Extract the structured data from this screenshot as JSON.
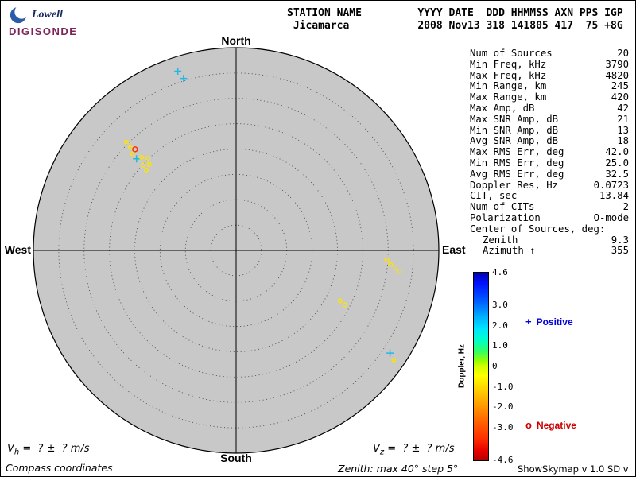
{
  "logo": {
    "name": "Lowell",
    "brand": "DIGISONDE"
  },
  "header": {
    "line1": "STATION NAME         YYYY DATE  DDD HHMMSS AXN PPS IGP",
    "line2": " Jicamarca           2008 Nov13 318 141805 417  75 +8G",
    "columns": [
      "STATION NAME",
      "YYYY DATE",
      "DDD",
      "HHMMSS",
      "AXN",
      "PPS",
      "IGP"
    ],
    "values": [
      "Jicamarca",
      "2008 Nov13",
      "318",
      "141805",
      "417",
      "75",
      "+8G"
    ]
  },
  "compass": {
    "north": "North",
    "south": "South",
    "west": "West",
    "east": "East"
  },
  "stats": [
    {
      "label": "Num of Sources",
      "value": "20"
    },
    {
      "label": "Min Freq, kHz",
      "value": "3790"
    },
    {
      "label": "Max Freq, kHz",
      "value": "4820"
    },
    {
      "label": "Min Range, km",
      "value": "245"
    },
    {
      "label": "Max Range, km",
      "value": "420"
    },
    {
      "label": "Max Amp, dB",
      "value": "42"
    },
    {
      "label": "Max SNR Amp, dB",
      "value": "21"
    },
    {
      "label": "Min SNR Amp, dB",
      "value": "13"
    },
    {
      "label": "Avg SNR Amp, dB",
      "value": "18"
    },
    {
      "label": "Max RMS Err, deg",
      "value": "42.0"
    },
    {
      "label": "Min RMS Err, deg",
      "value": "25.0"
    },
    {
      "label": "Avg RMS Err, deg",
      "value": "32.5"
    },
    {
      "label": "Doppler Res, Hz",
      "value": "0.0723"
    },
    {
      "label": "CIT, sec",
      "value": "13.84"
    },
    {
      "label": "Num of CITs",
      "value": "2"
    },
    {
      "label": "Polarization",
      "value": "O-mode"
    },
    {
      "label": "Center of Sources, deg:",
      "value": ""
    },
    {
      "label": "Zenith",
      "value": "9.3",
      "indent": true
    },
    {
      "label": "Azimuth ↑",
      "value": "355",
      "indent": true
    }
  ],
  "colorbar": {
    "title": "Doppler, Hz",
    "min": -4.6,
    "max": 4.6,
    "ticks": [
      {
        "value": 4.6,
        "label": "4.6"
      },
      {
        "value": 3.0,
        "label": "3.0"
      },
      {
        "value": 2.0,
        "label": "2.0"
      },
      {
        "value": 1.0,
        "label": "1.0"
      },
      {
        "value": 0,
        "label": "0"
      },
      {
        "value": -1.0,
        "label": "-1.0"
      },
      {
        "value": -2.0,
        "label": "-2.0"
      },
      {
        "value": -3.0,
        "label": "-3.0"
      },
      {
        "value": -4.6,
        "label": "-4.6"
      }
    ],
    "gradient": [
      "#0000b4 0%",
      "#0014ff 6%",
      "#0064ff 16%",
      "#00b4ff 24%",
      "#00e6ff 30%",
      "#00ffc8 36%",
      "#32ff64 42%",
      "#96ff00 47%",
      "#d2ff00 50%",
      "#ffff00 55%",
      "#ffd200 62%",
      "#ffa000 70%",
      "#ff6400 79%",
      "#ff3200 88%",
      "#e60000 95%",
      "#b40000 100%"
    ]
  },
  "legend": {
    "positive": {
      "symbol": "+",
      "label": "Positive",
      "color": "#0000dd"
    },
    "negative": {
      "symbol": "o",
      "label": "Negative",
      "color": "#cc0000"
    }
  },
  "velocity": {
    "vh": {
      "sym": "V",
      "sub": "h",
      "rest": " =  ? ±  ? m/s"
    },
    "vz": {
      "sym": "V",
      "sub": "z",
      "rest": " =  ? ±  ? m/s"
    }
  },
  "footer": {
    "left": "Compass coordinates",
    "center": "Zenith: max 40°  step 5°",
    "right": "ShowSkymap v 1.0  SD v 4.2"
  },
  "chart_data": {
    "type": "scatter",
    "projection": "polar-skymap",
    "station": "Jicamarca",
    "zenith_max_deg": 40,
    "zenith_step_deg": 5,
    "doppler_range_hz": [
      -4.6,
      4.6
    ],
    "center_of_sources": {
      "zenith_deg": 9.3,
      "azimuth_deg": 355
    },
    "points": [
      {
        "zen": 37.2,
        "az": 342.0,
        "sym": "+",
        "color": "#22b8e6",
        "doppler": 2.0
      },
      {
        "zen": 35.5,
        "az": 343.0,
        "sym": "+",
        "color": "#22b8e6",
        "doppler": 2.0
      },
      {
        "zen": 30.4,
        "az": 314.6,
        "sym": "o",
        "color": "#ffe400",
        "doppler": -1.0
      },
      {
        "zen": 29.1,
        "az": 314.1,
        "sym": "o",
        "color": "#ffe400",
        "doppler": -1.0
      },
      {
        "zen": 28.2,
        "az": 315.0,
        "sym": "o",
        "color": "#ff2d00",
        "doppler": -3.8,
        "r": 3
      },
      {
        "zen": 26.7,
        "az": 312.6,
        "sym": "+",
        "color": "#22b8e6",
        "doppler": 1.5
      },
      {
        "zen": 27.9,
        "az": 313.0,
        "sym": "o",
        "color": "#ffe400",
        "doppler": -1.0
      },
      {
        "zen": 26.2,
        "az": 314.5,
        "sym": "o",
        "color": "#ffe400",
        "doppler": -1.0
      },
      {
        "zen": 25.2,
        "az": 316.2,
        "sym": "o",
        "color": "#ffe400",
        "doppler": -1.0
      },
      {
        "zen": 24.9,
        "az": 312.5,
        "sym": "o",
        "color": "#ffe400",
        "doppler": -1.0
      },
      {
        "zen": 23.8,
        "az": 311.8,
        "sym": "o",
        "color": "#ffe400",
        "doppler": -1.0
      },
      {
        "zen": 24.1,
        "az": 314.7,
        "sym": "o",
        "color": "#ffe400",
        "doppler": -1.0
      },
      {
        "zen": 29.8,
        "az": 93.6,
        "sym": "o",
        "color": "#ffe400",
        "doppler": -1.0
      },
      {
        "zen": 30.6,
        "az": 95.2,
        "sym": "o",
        "color": "#ffe400",
        "doppler": -1.0
      },
      {
        "zen": 31.6,
        "az": 96.2,
        "sym": "o",
        "color": "#ffe400",
        "doppler": -1.0
      },
      {
        "zen": 32.5,
        "az": 97.4,
        "sym": "o",
        "color": "#ffe400",
        "doppler": -1.0
      },
      {
        "zen": 22.8,
        "az": 115.9,
        "sym": "o",
        "color": "#ffe400",
        "doppler": -1.0
      },
      {
        "zen": 24.0,
        "az": 116.6,
        "sym": "o",
        "color": "#ffe400",
        "doppler": -1.0
      },
      {
        "zen": 36.5,
        "az": 123.7,
        "sym": "+",
        "color": "#22b8e6",
        "doppler": 1.5
      },
      {
        "zen": 37.9,
        "az": 124.8,
        "sym": "o",
        "color": "#ffe400",
        "doppler": -1.0
      }
    ]
  }
}
